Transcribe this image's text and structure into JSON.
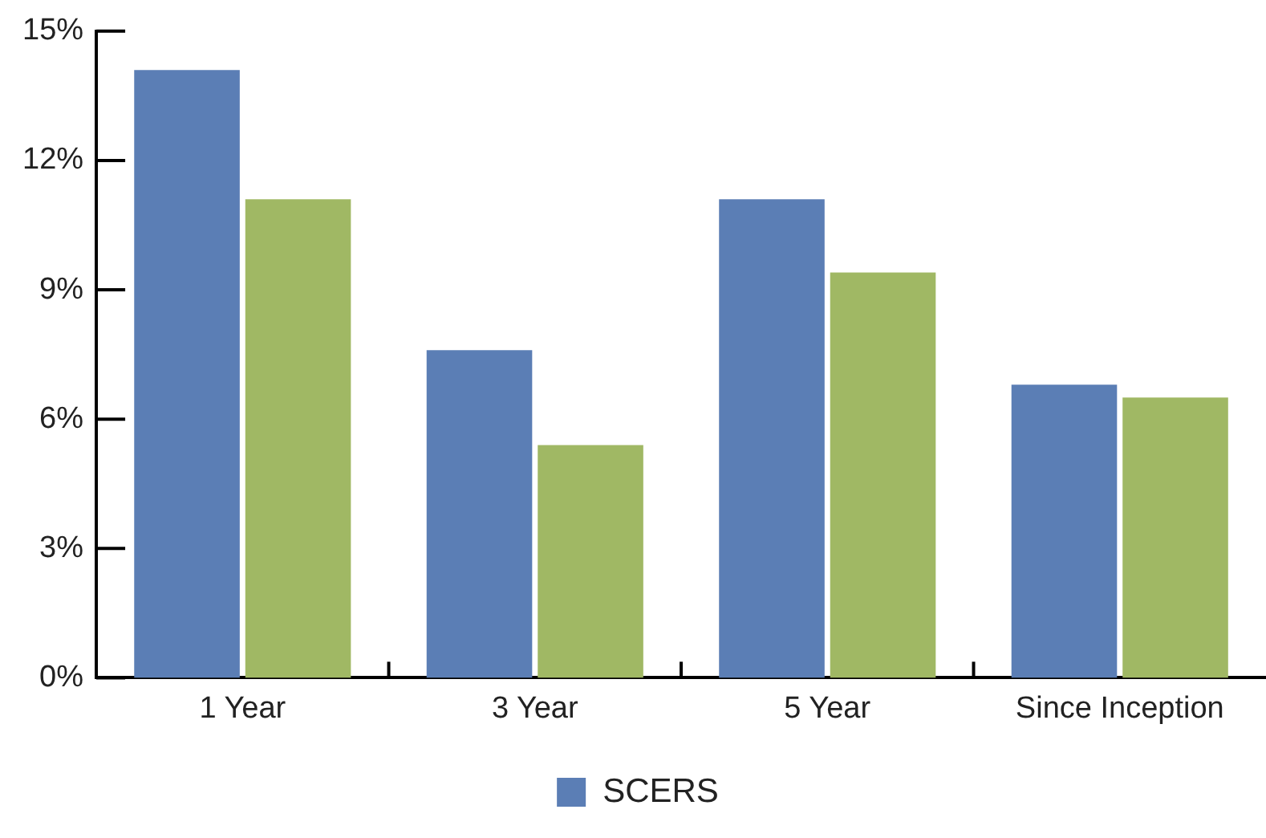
{
  "chart_data": {
    "type": "bar",
    "categories": [
      "1 Year",
      "3 Year",
      "5 Year",
      "Since Inception"
    ],
    "series": [
      {
        "name": "SCERS",
        "color": "#5b7eb5",
        "values": [
          14.1,
          7.6,
          11.1,
          6.8
        ]
      },
      {
        "color": "#a0b864",
        "values": [
          11.1,
          5.4,
          9.4,
          6.5
        ]
      }
    ],
    "ylim": [
      0,
      15
    ],
    "yticks": [
      {
        "value": 0,
        "label": "0%"
      },
      {
        "value": 3,
        "label": "3%"
      },
      {
        "value": 6,
        "label": "6%"
      },
      {
        "value": 9,
        "label": "9%"
      },
      {
        "value": 12,
        "label": "12%"
      },
      {
        "value": 15,
        "label": "15%"
      }
    ],
    "legend": "bottom"
  }
}
